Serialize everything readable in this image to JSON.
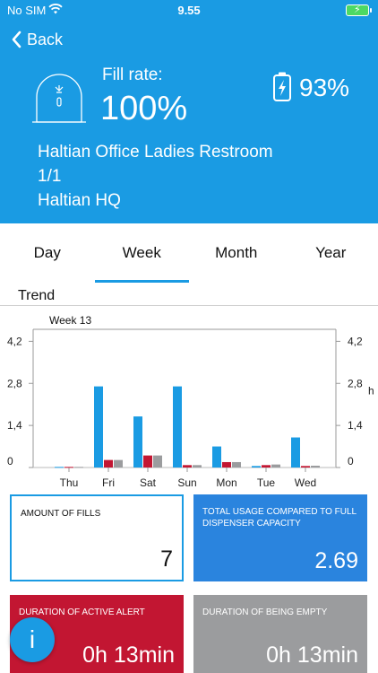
{
  "status_bar": {
    "carrier": "No SIM",
    "time": "9.55"
  },
  "nav": {
    "back_label": "Back"
  },
  "header": {
    "fill_rate_label": "Fill rate:",
    "fill_rate_value": "100%",
    "battery_value": "93%",
    "location_name": "Haltian Office Ladies Restroom",
    "floor": "1/1",
    "site": "Haltian HQ"
  },
  "tabs": [
    {
      "label": "Day",
      "active": false
    },
    {
      "label": "Week",
      "active": true
    },
    {
      "label": "Month",
      "active": false
    },
    {
      "label": "Year",
      "active": false
    }
  ],
  "trend": {
    "title": "Trend"
  },
  "chart_data": {
    "type": "bar",
    "title": "Week 13",
    "categories": [
      "Thu",
      "Fri",
      "Sat",
      "Sun",
      "Mon",
      "Tue",
      "Wed"
    ],
    "series": [
      {
        "values": [
          0.02,
          2.7,
          1.7,
          2.7,
          0.7,
          0.05,
          1.0
        ],
        "color": "#1a9be3"
      },
      {
        "values": [
          0.02,
          0.25,
          0.4,
          0.08,
          0.18,
          0.08,
          0.05
        ],
        "color": "#c21632"
      },
      {
        "values": [
          0.02,
          0.25,
          0.4,
          0.08,
          0.18,
          0.1,
          0.06
        ],
        "color": "#9b9c9e"
      }
    ],
    "yticks": [
      "0",
      "1,4",
      "2,8",
      "4,2"
    ],
    "ytick_values": [
      0,
      1.4,
      2.8,
      4.2
    ],
    "ylabel_right": "h",
    "ylim": [
      0,
      4.6
    ],
    "grid": false
  },
  "cards": {
    "fills": {
      "label": "AMOUNT OF FILLS",
      "value": "7"
    },
    "usage": {
      "label": "TOTAL USAGE COMPARED TO FULL DISPENSER CAPACITY",
      "value": "2.69"
    },
    "alert": {
      "label": "DURATION OF ACTIVE ALERT",
      "value": "0h 13min"
    },
    "empty": {
      "label": "DURATION OF BEING EMPTY",
      "value": "0h 13min"
    }
  },
  "fab": {
    "label": "i"
  },
  "colors": {
    "primary": "#1a9be3",
    "usage": "#2a84de",
    "alert": "#c21632",
    "empty": "#9b9c9e"
  },
  "icons": [
    "wifi-icon",
    "battery-charging-icon",
    "chevron-left-icon",
    "dispenser-icon",
    "info-icon"
  ]
}
